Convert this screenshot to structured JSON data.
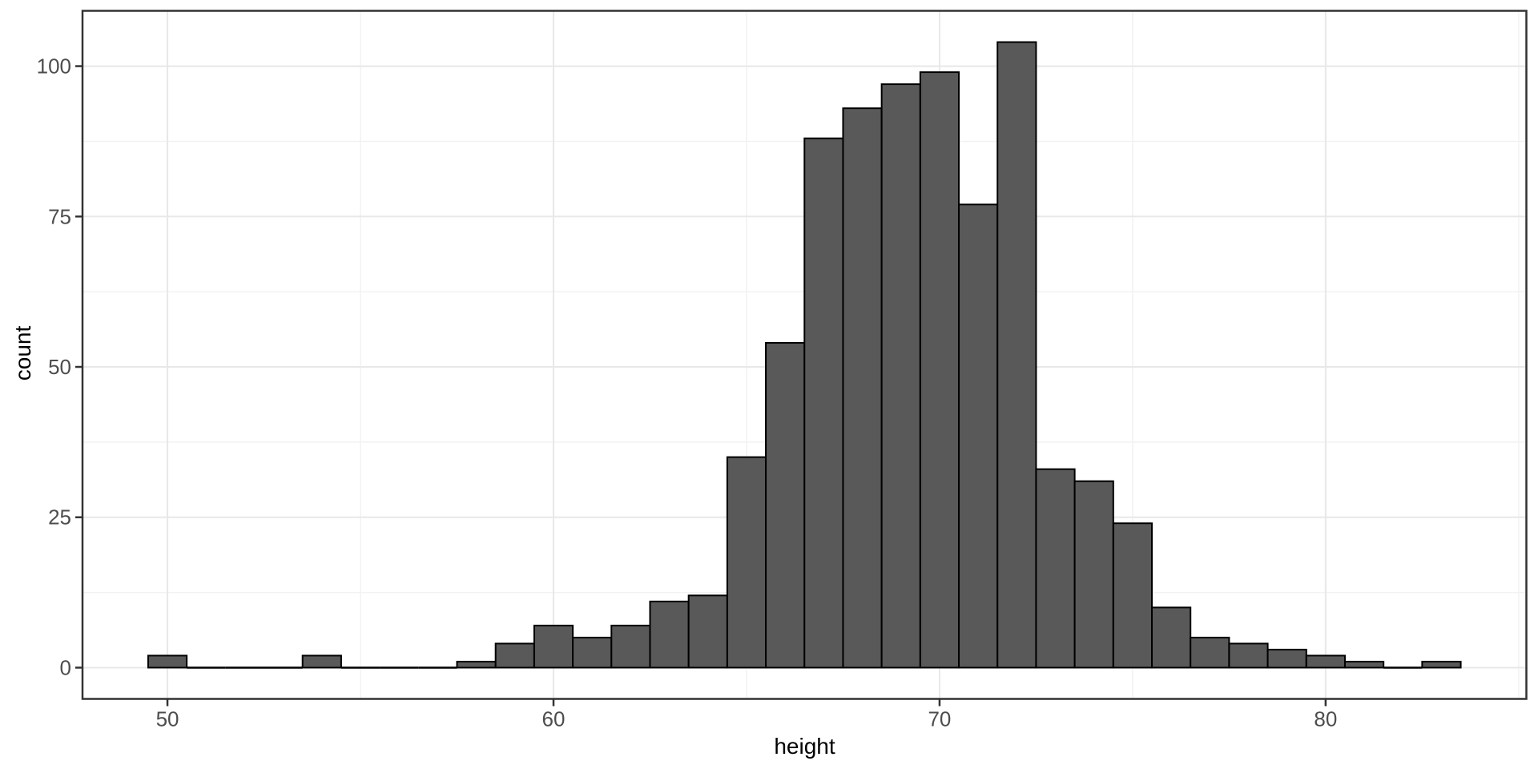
{
  "chart_data": {
    "type": "bar",
    "subtype": "histogram",
    "title": "",
    "xlabel": "height",
    "ylabel": "count",
    "bin_width": 1,
    "bin_centers": [
      50,
      51,
      52,
      53,
      54,
      55,
      56,
      57,
      58,
      59,
      60,
      61,
      62,
      63,
      64,
      65,
      66,
      67,
      68,
      69,
      70,
      71,
      72,
      73,
      74,
      75,
      76,
      77,
      78,
      79,
      80,
      81,
      82,
      83
    ],
    "counts": [
      2,
      0,
      0,
      0,
      2,
      0,
      0,
      0,
      1,
      4,
      7,
      5,
      7,
      11,
      12,
      35,
      54,
      88,
      93,
      97,
      99,
      77,
      104,
      33,
      31,
      24,
      10,
      5,
      4,
      3,
      2,
      1,
      0,
      1
    ],
    "x_ticks": [
      50,
      60,
      70,
      80
    ],
    "y_ticks": [
      0,
      25,
      50,
      75,
      100
    ],
    "x_minor_ticks": [
      55,
      65,
      75,
      85
    ],
    "y_minor_ticks": [
      12.5,
      37.5,
      62.5,
      87.5
    ],
    "xlim": [
      47.8,
      85.2
    ],
    "ylim": [
      -5.2,
      109.2
    ],
    "grid": true,
    "legend_position": "none",
    "colors": {
      "bar_fill": "#595959",
      "bar_stroke": "#000000",
      "panel_background": "#FFFFFF",
      "panel_border": "#333333",
      "grid_major": "#E8E8E8",
      "grid_minor": "#F2F2F2",
      "tick_mark": "#333333",
      "tick_label": "#4D4D4D",
      "axis_title": "#000000",
      "figure_background": "#FFFFFF"
    }
  }
}
